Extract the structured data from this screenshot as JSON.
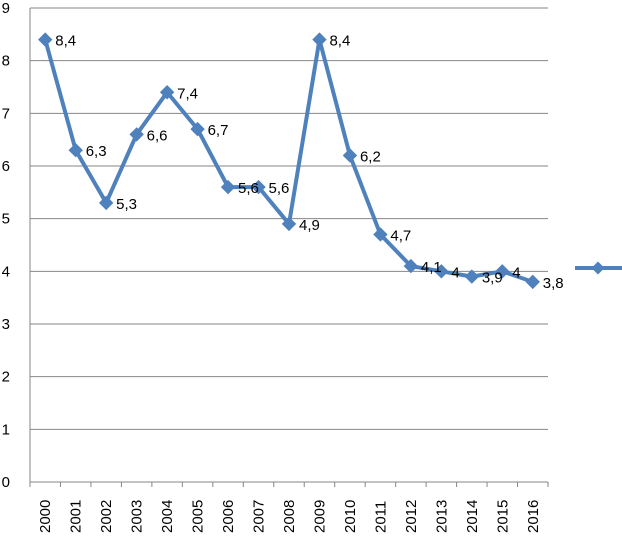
{
  "chart_data": {
    "type": "line",
    "title": "",
    "xlabel": "",
    "ylabel": "",
    "categories": [
      "2000",
      "2001",
      "2002",
      "2003",
      "2004",
      "2005",
      "2006",
      "2007",
      "2008",
      "2009",
      "2010",
      "2011",
      "2012",
      "2013",
      "2014",
      "2015",
      "2016"
    ],
    "series": [
      {
        "name": "",
        "values": [
          8.4,
          6.3,
          5.3,
          6.6,
          7.4,
          6.7,
          5.6,
          5.6,
          4.9,
          8.4,
          6.2,
          4.7,
          4.1,
          4.0,
          3.9,
          4.0,
          3.8
        ],
        "data_labels": [
          "8,4",
          "6,3",
          "5,3",
          "6,6",
          "7,4",
          "6,7",
          "5,6",
          "5,6",
          "4,9",
          "8,4",
          "6,2",
          "4,7",
          "4,1",
          "4",
          "3,9",
          "4",
          "3,8"
        ]
      }
    ],
    "ylim": [
      0,
      9
    ],
    "y_ticks": [
      "0",
      "1",
      "2",
      "3",
      "4",
      "5",
      "6",
      "7",
      "8",
      "9"
    ],
    "grid": true,
    "legend_position": "right",
    "color": "#4F81BD"
  }
}
